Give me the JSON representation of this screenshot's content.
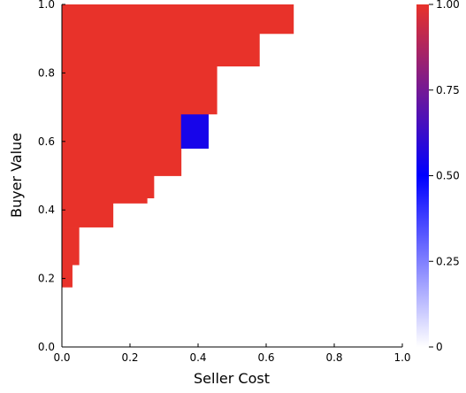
{
  "chart_data": {
    "type": "heatmap",
    "xlabel": "Seller Cost",
    "ylabel": "Buyer Value",
    "xlim": [
      0.0,
      1.0
    ],
    "ylim": [
      0.0,
      1.0
    ],
    "xticks": [
      0.0,
      0.2,
      0.4,
      0.6,
      0.8,
      1.0
    ],
    "xtick_labels": [
      "0.0",
      "0.2",
      "0.4",
      "0.6",
      "0.8",
      "1.0"
    ],
    "yticks": [
      0.0,
      0.2,
      0.4,
      0.6,
      0.8,
      1.0
    ],
    "ytick_labels": [
      "0.0",
      "0.2",
      "0.4",
      "0.6",
      "0.8",
      "1.0"
    ],
    "grid": false,
    "colorbar": {
      "min": 0.0,
      "max": 1.0,
      "ticks": [
        0.0,
        0.25,
        0.5,
        0.75,
        1.0
      ],
      "tick_labels": [
        "0",
        "0.25",
        "0.50",
        "0.75",
        "1.00"
      ],
      "colors": [
        "#ffffff",
        "#0000ff",
        "#e8322a"
      ]
    },
    "cells": [
      {
        "x0": 0.0,
        "x1": 0.03,
        "y0": 0.175,
        "y1": 0.24,
        "value": 1.0
      },
      {
        "x0": 0.0,
        "x1": 0.05,
        "y0": 0.24,
        "y1": 0.35,
        "value": 1.0
      },
      {
        "x0": 0.0,
        "x1": 0.15,
        "y0": 0.35,
        "y1": 0.42,
        "value": 1.0
      },
      {
        "x0": 0.0,
        "x1": 0.25,
        "y0": 0.42,
        "y1": 0.435,
        "value": 1.0
      },
      {
        "x0": 0.0,
        "x1": 0.27,
        "y0": 0.435,
        "y1": 0.5,
        "value": 1.0
      },
      {
        "x0": 0.0,
        "x1": 0.35,
        "y0": 0.5,
        "y1": 0.58,
        "value": 1.0
      },
      {
        "x0": 0.0,
        "x1": 0.35,
        "y0": 0.58,
        "y1": 0.68,
        "value": 1.0
      },
      {
        "x0": 0.35,
        "x1": 0.43,
        "y0": 0.58,
        "y1": 0.68,
        "value": 0.55
      },
      {
        "x0": 0.0,
        "x1": 0.455,
        "y0": 0.68,
        "y1": 0.82,
        "value": 1.0
      },
      {
        "x0": 0.0,
        "x1": 0.58,
        "y0": 0.82,
        "y1": 0.915,
        "value": 1.0
      },
      {
        "x0": 0.0,
        "x1": 0.68,
        "y0": 0.915,
        "y1": 1.0,
        "value": 1.0
      }
    ]
  }
}
